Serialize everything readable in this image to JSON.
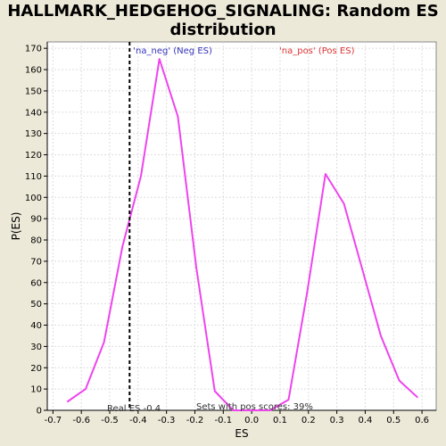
{
  "title_line1": "HALLMARK_HEDGEHOG_SIGNALING: Random ES",
  "title_line2": "distribution",
  "chart_data": {
    "type": "line",
    "title": "HALLMARK_HEDGEHOG_SIGNALING: Random ES distribution",
    "xlabel": "ES",
    "ylabel": "P(ES)",
    "xlim": [
      -0.72,
      0.65
    ],
    "ylim": [
      0,
      173
    ],
    "x_ticks": [
      -0.7,
      -0.6,
      -0.5,
      -0.4,
      -0.3,
      -0.2,
      -0.1,
      0.0,
      0.1,
      0.2,
      0.3,
      0.4,
      0.5,
      0.6
    ],
    "x_tick_labels": [
      "-0.7",
      "-0.6",
      "-0.5",
      "-0.4",
      "-0.3",
      "-0.2",
      "-0.1",
      "0.0",
      "0.1",
      "0.2",
      "0.3",
      "0.4",
      "0.5",
      "0.6"
    ],
    "y_ticks": [
      0,
      10,
      20,
      30,
      40,
      50,
      60,
      70,
      80,
      90,
      100,
      110,
      120,
      130,
      140,
      150,
      160,
      170
    ],
    "grid": true,
    "series": [
      {
        "color": "#ee44ee",
        "x": [
          -0.65,
          -0.585,
          -0.52,
          -0.455,
          -0.39,
          -0.325,
          -0.26,
          -0.195,
          -0.13,
          -0.065,
          0.0,
          0.065,
          0.13,
          0.195,
          0.26,
          0.325,
          0.39,
          0.455,
          0.52,
          0.585
        ],
        "y": [
          4,
          10,
          32,
          77,
          110,
          165,
          138,
          67,
          9,
          0,
          0,
          0,
          5,
          55,
          111,
          97,
          66,
          35,
          14,
          6
        ]
      }
    ],
    "real_es": -0.43,
    "real_es_label": "Real ES -0.4",
    "annotations": {
      "neg_label": "'na_neg' (Neg ES)",
      "pos_label": "'na_pos' (Pos ES)",
      "pos_scores_label": "Sets with pos scores: 39%"
    },
    "colors": {
      "neg": "#3333bb",
      "pos": "#dd3333",
      "grid": "#dddddd",
      "real_es_line": "#000000"
    }
  }
}
